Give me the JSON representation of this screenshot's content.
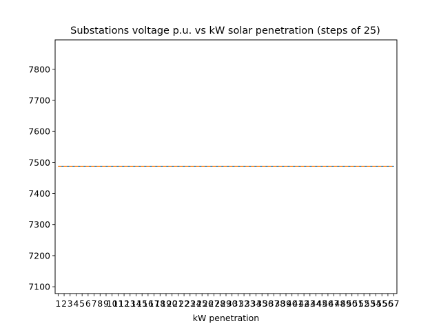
{
  "chart_data": {
    "type": "line",
    "title": "Substations voltage p.u. vs kW solar penetration (steps of 25)",
    "xlabel": "kW penetration",
    "ylabel": "",
    "x": [
      1,
      2,
      3,
      4,
      5,
      6,
      7,
      8,
      9,
      10,
      11,
      12,
      13,
      14,
      15,
      16,
      17,
      18,
      19,
      20,
      21,
      22,
      23,
      24,
      25,
      26,
      27,
      28,
      29,
      30,
      31,
      32,
      33,
      34,
      35,
      36,
      37,
      38,
      39,
      40,
      41,
      42,
      43,
      44,
      45,
      46,
      47,
      48,
      49,
      50,
      51,
      52,
      53,
      54,
      55,
      56,
      57
    ],
    "xlim": [
      0.5,
      57.5
    ],
    "ylim": [
      7078,
      7895
    ],
    "yticks": [
      7100,
      7200,
      7300,
      7400,
      7500,
      7600,
      7700,
      7800
    ],
    "grid": false,
    "series": [
      {
        "color": "#1f77b4",
        "style": "solid",
        "value": 7487
      },
      {
        "color": "#ff7f0e",
        "style": "dashed",
        "value": 7487
      }
    ]
  }
}
